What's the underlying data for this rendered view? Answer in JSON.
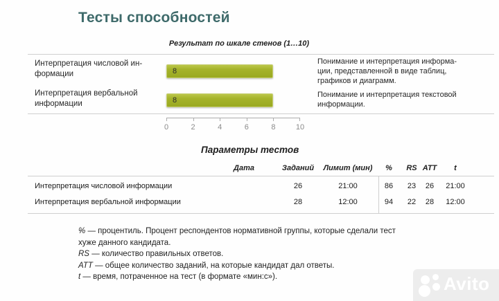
{
  "page": {
    "title": "Тесты способностей",
    "accent_color": "#3e6a6a"
  },
  "chart": {
    "subtitle": "Результат по шкале стенов (1…10)",
    "bar_color": "#a5b32b",
    "rows": [
      {
        "label": "Интерпретация числовой ин-\nформации",
        "description": "Понимание и интерпретация информа-\nции, представленной в виде таблиц,\nграфиков и диаграмм."
      },
      {
        "label": "Интерпретация вербальной\nинформации",
        "description": "Понимание и интерпретация текстовой\nинформации."
      }
    ],
    "axis_ticks": [
      "0",
      "2",
      "4",
      "6",
      "8",
      "10"
    ]
  },
  "chart_data": {
    "type": "bar",
    "orientation": "horizontal",
    "title": "Результат по шкале стенов (1…10)",
    "categories": [
      "Интерпретация числовой информации",
      "Интерпретация вербальной информации"
    ],
    "values": [
      8,
      8
    ],
    "xlim": [
      0,
      10
    ],
    "x_ticks": [
      0,
      2,
      4,
      6,
      8,
      10
    ],
    "grid": false,
    "legend": false
  },
  "table": {
    "title": "Параметры тестов",
    "columns": {
      "date": "Дата",
      "tasks": "Заданий",
      "limit": "Лимит (мин)",
      "pct": "%",
      "rs": "RS",
      "att": "ATT",
      "t": "t"
    },
    "rows": [
      {
        "name": "Интерпретация числовой информации",
        "date": "",
        "tasks": "26",
        "limit": "21:00",
        "pct": "86",
        "rs": "23",
        "att": "26",
        "t": "21:00"
      },
      {
        "name": "Интерпретация вербальной информации",
        "date": "",
        "tasks": "28",
        "limit": "12:00",
        "pct": "94",
        "rs": "22",
        "att": "28",
        "t": "12:00"
      }
    ]
  },
  "footnotes": [
    {
      "term": "%",
      "text": "— процентиль. Процент респондентов нормативной группы, которые сделали тест\nхуже данного кандидата."
    },
    {
      "term": "RS",
      "text": "— количество правильных ответов."
    },
    {
      "term": "ATT",
      "text": "— общее количество заданий, на которые кандидат дал ответы."
    },
    {
      "term": "t",
      "text": "— время, потраченное на тест (в формате «мин:с»)."
    }
  ],
  "watermark": {
    "text": "Avito"
  }
}
